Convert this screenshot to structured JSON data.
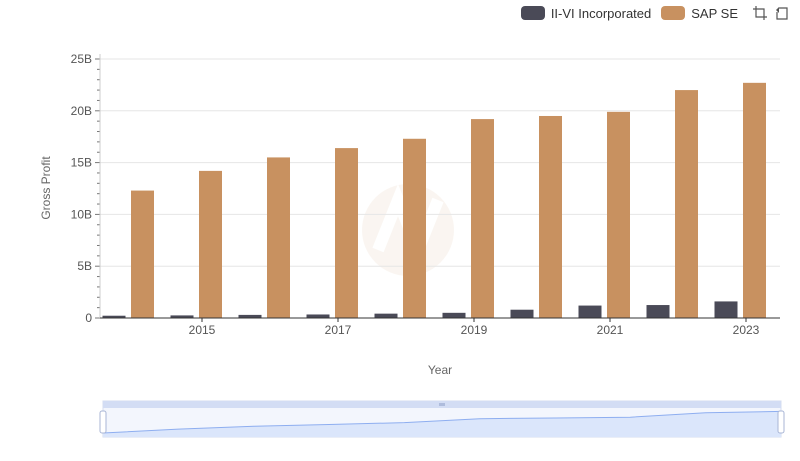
{
  "colors": {
    "series1": "#4a4a57",
    "series2": "#c89160",
    "grid": "#e6e6e6",
    "axis": "#333333",
    "zoom_fill": "#dbe6fb",
    "zoom_line": "#8eaef0"
  },
  "toolbar": {
    "zoom_icon": "zoom-area-icon",
    "restore_icon": "restore-icon"
  },
  "chart_data": {
    "type": "bar",
    "xlabel": "Year",
    "ylabel": "Gross Profit",
    "ylim": [
      0,
      25
    ],
    "y_unit": "B",
    "yticks": [
      "0",
      "5B",
      "10B",
      "15B",
      "20B",
      "25B"
    ],
    "categories": [
      "2014",
      "2015",
      "2016",
      "2017",
      "2018",
      "2019",
      "2020",
      "2021",
      "2022",
      "2023"
    ],
    "x_tick_labels": [
      "2015",
      "2017",
      "2019",
      "2021",
      "2023"
    ],
    "grid": true,
    "legend_position": "top-right",
    "series": [
      {
        "name": "II-VI Incorporated",
        "values": [
          0.22,
          0.25,
          0.3,
          0.34,
          0.42,
          0.5,
          0.8,
          1.2,
          1.25,
          1.6
        ]
      },
      {
        "name": "SAP SE",
        "values": [
          12.3,
          14.2,
          15.5,
          16.4,
          17.3,
          19.2,
          19.5,
          19.9,
          22.0,
          22.7
        ]
      }
    ]
  }
}
